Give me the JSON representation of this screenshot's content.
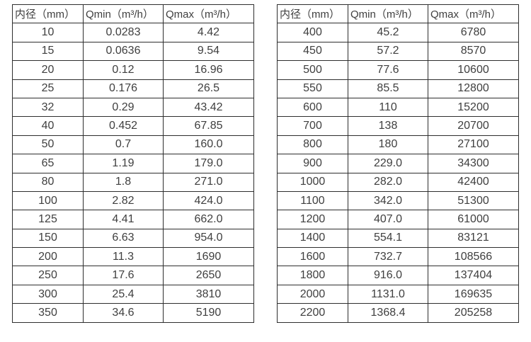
{
  "columns": [
    "内径（mm）",
    "Qmin（m³/h）",
    "Qmax（m³/h）"
  ],
  "left_table": {
    "rows": [
      [
        "10",
        "0.0283",
        "4.42"
      ],
      [
        "15",
        "0.0636",
        "9.54"
      ],
      [
        "20",
        "0.12",
        "16.96"
      ],
      [
        "25",
        "0.176",
        "26.5"
      ],
      [
        "32",
        "0.29",
        "43.42"
      ],
      [
        "40",
        "0.452",
        "67.85"
      ],
      [
        "50",
        "0.7",
        "160.0"
      ],
      [
        "65",
        "1.19",
        "179.0"
      ],
      [
        "80",
        "1.8",
        "271.0"
      ],
      [
        "100",
        "2.82",
        "424.0"
      ],
      [
        "125",
        "4.41",
        "662.0"
      ],
      [
        "150",
        "6.63",
        "954.0"
      ],
      [
        "200",
        "11.3",
        "1690"
      ],
      [
        "250",
        "17.6",
        "2650"
      ],
      [
        "300",
        "25.4",
        "3810"
      ],
      [
        "350",
        "34.6",
        "5190"
      ]
    ]
  },
  "right_table": {
    "rows": [
      [
        "400",
        "45.2",
        "6780"
      ],
      [
        "450",
        "57.2",
        "8570"
      ],
      [
        "500",
        "77.6",
        "10600"
      ],
      [
        "550",
        "85.5",
        "12800"
      ],
      [
        "600",
        "110",
        "15200"
      ],
      [
        "700",
        "138",
        "20700"
      ],
      [
        "800",
        "180",
        "27100"
      ],
      [
        "900",
        "229.0",
        "34300"
      ],
      [
        "1000",
        "282.0",
        "42400"
      ],
      [
        "1100",
        "342.0",
        "51300"
      ],
      [
        "1200",
        "407.0",
        "61000"
      ],
      [
        "1400",
        "554.1",
        "83121"
      ],
      [
        "1600",
        "732.7",
        "108566"
      ],
      [
        "1800",
        "916.0",
        "137404"
      ],
      [
        "2000",
        "1131.0",
        "169635"
      ],
      [
        "2200",
        "1368.4",
        "205258"
      ]
    ]
  }
}
